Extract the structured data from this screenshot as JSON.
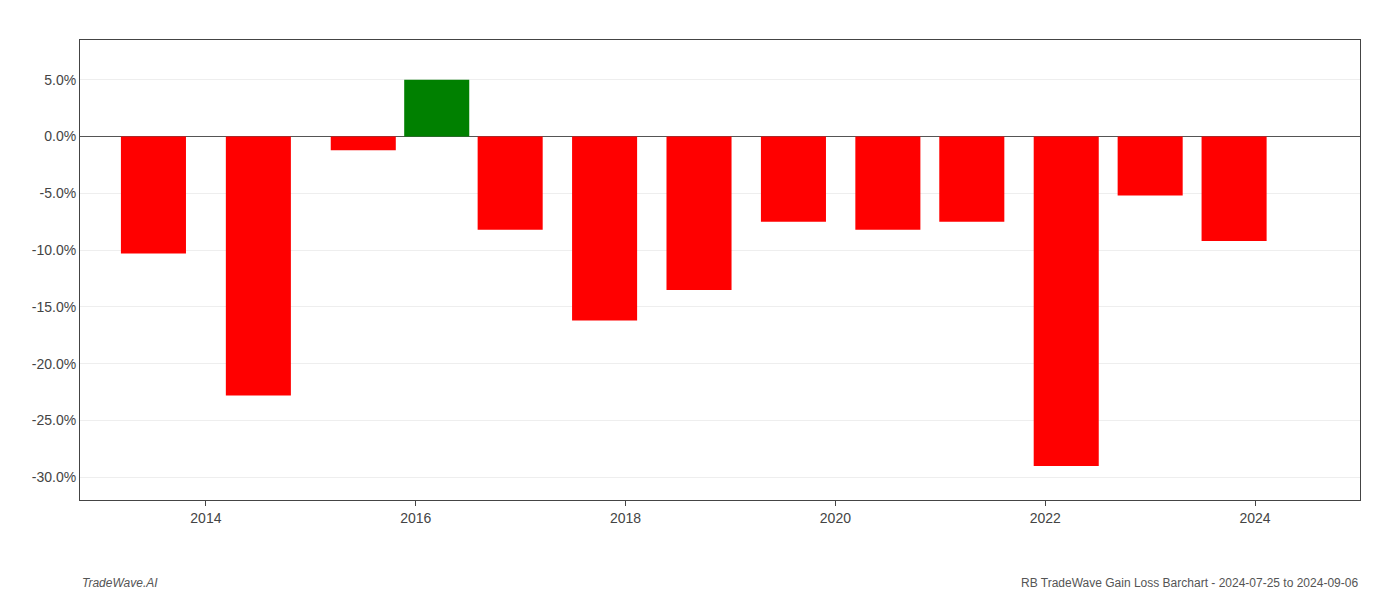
{
  "chart_data": {
    "type": "bar",
    "x": [
      2013.5,
      2014.5,
      2015.5,
      2016.2,
      2016.9,
      2017.8,
      2018.7,
      2019.6,
      2020.5,
      2021.3,
      2022.2,
      2023.0,
      2023.8
    ],
    "values": [
      -0.103,
      -0.228,
      -0.012,
      0.05,
      -0.082,
      -0.162,
      -0.135,
      -0.075,
      -0.082,
      -0.075,
      -0.29,
      -0.052,
      -0.092
    ],
    "colors": [
      "#ff0000",
      "#ff0000",
      "#ff0000",
      "#008000",
      "#ff0000",
      "#ff0000",
      "#ff0000",
      "#ff0000",
      "#ff0000",
      "#ff0000",
      "#ff0000",
      "#ff0000",
      "#ff0000"
    ],
    "xlim": [
      2012.8,
      2025.0
    ],
    "xticks": [
      2014,
      2016,
      2018,
      2020,
      2022,
      2024
    ],
    "ylim": [
      -0.32,
      0.085
    ],
    "yticks": [
      {
        "value": 0.05,
        "label": "5.0%"
      },
      {
        "value": 0.0,
        "label": "0.0%"
      },
      {
        "value": -0.05,
        "label": "-5.0%"
      },
      {
        "value": -0.1,
        "label": "-10.0%"
      },
      {
        "value": -0.15,
        "label": "-15.0%"
      },
      {
        "value": -0.2,
        "label": "-20.0%"
      },
      {
        "value": -0.25,
        "label": "-25.0%"
      },
      {
        "value": -0.3,
        "label": "-30.0%"
      }
    ],
    "grid": true,
    "annotations": [
      "TradeWave.AI",
      "RB TradeWave Gain Loss Barchart - 2024-07-25 to 2024-09-06"
    ]
  }
}
